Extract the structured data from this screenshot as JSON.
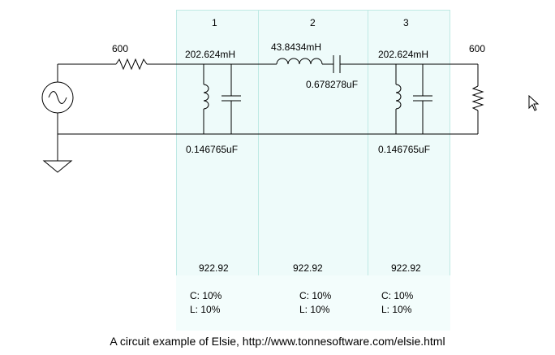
{
  "source": {
    "resistance": "600"
  },
  "load": {
    "resistance": "600"
  },
  "sections": [
    {
      "index": "1",
      "top_value": "202.624mH",
      "bottom_value": "0.146765uF",
      "freq": "922.92",
      "tol_c": "C: 10%",
      "tol_l": "L: 10%"
    },
    {
      "index": "2",
      "top_value": "43.8434mH",
      "cap_value": "0.678278uF",
      "freq": "922.92",
      "tol_c": "C: 10%",
      "tol_l": "L: 10%"
    },
    {
      "index": "3",
      "top_value": "202.624mH",
      "bottom_value": "0.146765uF",
      "freq": "922.92",
      "tol_c": "C: 10%",
      "tol_l": "L: 10%"
    }
  ],
  "caption": "A circuit example of Elsie, http://www.tonnesoftware.com/elsie.html",
  "icons": [
    "ac-source-icon",
    "ground-icon",
    "resistor-icon",
    "inductor-icon",
    "capacitor-icon",
    "mouse-pointer-icon"
  ]
}
